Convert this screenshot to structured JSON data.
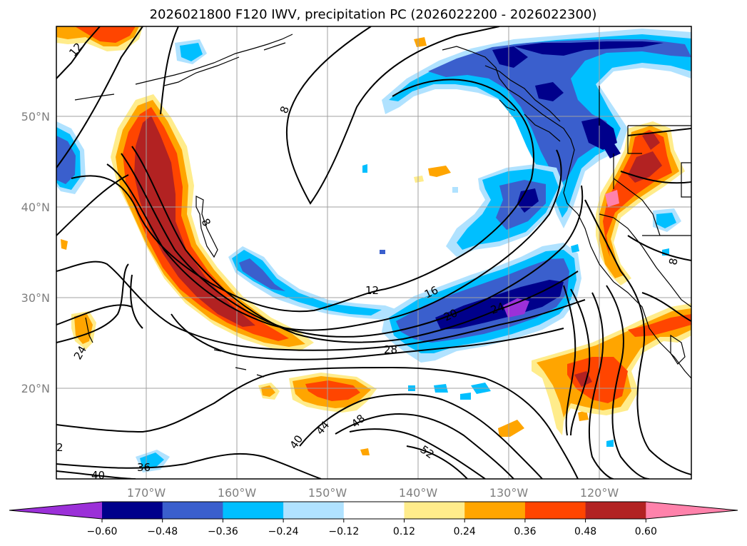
{
  "title": "2026021800 F120 IWV, precipitation PC (2026022200 - 2026022300)",
  "lat_labels": [
    "50°N",
    "40°N",
    "30°N",
    "20°N"
  ],
  "lon_labels": [
    "170°W",
    "160°W",
    "150°W",
    "140°W",
    "130°W",
    "120°W"
  ],
  "colorbar": {
    "ticks": [
      "−0.60",
      "−0.48",
      "−0.36",
      "−0.24",
      "−0.12",
      "0.12",
      "0.24",
      "0.36",
      "0.48",
      "0.60"
    ],
    "colors": [
      "#9b30d8",
      "#00008b",
      "#3a5fcd",
      "#00bfff",
      "#b0e2ff",
      "#ffffff",
      "#ffec8b",
      "#ffa500",
      "#ff4500",
      "#b22222",
      "#ff82ab"
    ]
  },
  "contour_labels": [
    "12",
    "8",
    "8",
    "12",
    "16",
    "20",
    "24",
    "28",
    "24",
    "40",
    "44",
    "48",
    "52",
    "36",
    "40",
    "2",
    "8"
  ],
  "colors": {
    "pos_high": "#b22222",
    "pos_mid": "#ff4500",
    "pos_low": "#ffa500",
    "pos_min": "#ffec8b",
    "neg_min": "#b0e2ff",
    "neg_low": "#00bfff",
    "neg_mid": "#3a5fcd",
    "neg_high": "#00008b",
    "neg_max": "#9b30d8",
    "pos_max": "#ff82ab"
  }
}
